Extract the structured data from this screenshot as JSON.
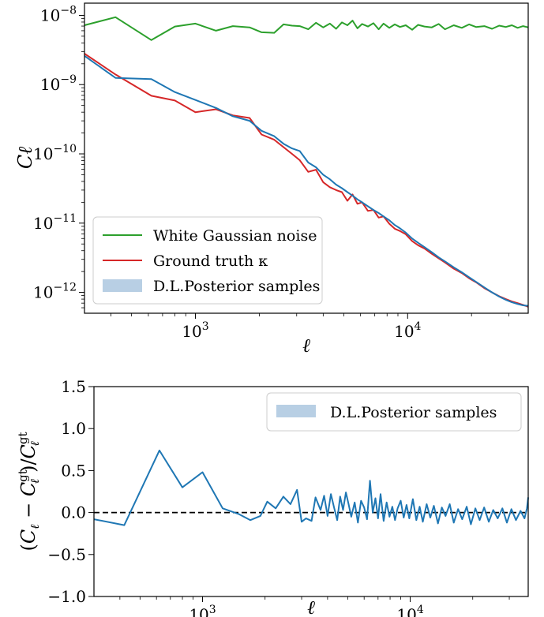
{
  "chart_data": [
    {
      "type": "line",
      "xscale": "log",
      "yscale": "log",
      "xlim": [
        300,
        37000
      ],
      "ylim": [
        5e-13,
        1.5e-08
      ],
      "xlabel": "ℓ",
      "ylabel": "Cℓ",
      "xticks": [
        {
          "value": 1000,
          "mant": "10",
          "exp": "3"
        },
        {
          "value": 10000,
          "mant": "10",
          "exp": "4"
        }
      ],
      "yticks": [
        {
          "value": 1e-12,
          "mant": "10",
          "exp": "−12"
        },
        {
          "value": 1e-11,
          "mant": "10",
          "exp": "−11"
        },
        {
          "value": 1e-10,
          "mant": "10",
          "exp": "−10"
        },
        {
          "value": 1e-09,
          "mant": "10",
          "exp": "−9"
        },
        {
          "value": 1e-08,
          "mant": "10",
          "exp": "−8"
        }
      ],
      "legend_position": "lower-left",
      "series": [
        {
          "name": "White Gaussian noise",
          "color": "#2ca02c",
          "x": [
            300,
            420,
            620,
            800,
            1000,
            1250,
            1500,
            1800,
            2050,
            2350,
            2600,
            2850,
            3100,
            3400,
            3700,
            4000,
            4300,
            4600,
            4900,
            5200,
            5500,
            5800,
            6100,
            6500,
            6900,
            7300,
            7700,
            8200,
            8700,
            9200,
            9800,
            10500,
            11200,
            12000,
            13000,
            14000,
            15000,
            16500,
            18000,
            19500,
            21000,
            23000,
            25000,
            27000,
            29000,
            31000,
            33000,
            35000,
            37000
          ],
          "y": [
            7.2e-09,
            9.4e-09,
            4.4e-09,
            6.9e-09,
            7.6e-09,
            6e-09,
            7e-09,
            6.7e-09,
            5.7e-09,
            5.6e-09,
            7.4e-09,
            7.1e-09,
            7e-09,
            6.3e-09,
            7.8e-09,
            6.7e-09,
            7.6e-09,
            6.4e-09,
            7.9e-09,
            7.2e-09,
            8.4e-09,
            6.5e-09,
            7.5e-09,
            6.9e-09,
            7.7e-09,
            6.3e-09,
            7.6e-09,
            6.6e-09,
            7.4e-09,
            6.8e-09,
            7.2e-09,
            6.2e-09,
            7.3e-09,
            6.9e-09,
            6.7e-09,
            7.5e-09,
            6.3e-09,
            7.2e-09,
            6.6e-09,
            7.4e-09,
            6.8e-09,
            7e-09,
            6.4e-09,
            7.1e-09,
            6.8e-09,
            7.2e-09,
            6.6e-09,
            7e-09,
            6.7e-09
          ]
        },
        {
          "name": "Ground truth κ",
          "color": "#d62728",
          "x": [
            300,
            420,
            620,
            800,
            1000,
            1250,
            1500,
            1800,
            2050,
            2350,
            2600,
            2850,
            3100,
            3400,
            3700,
            4000,
            4300,
            4600,
            4900,
            5200,
            5500,
            5800,
            6100,
            6500,
            6900,
            7300,
            7700,
            8200,
            8700,
            9200,
            9800,
            10500,
            11200,
            12000,
            13000,
            14000,
            15000,
            16500,
            18000,
            19500,
            21000,
            23000,
            25000,
            27000,
            29000,
            31000,
            33000,
            35000,
            37000
          ],
          "y": [
            2.8e-09,
            1.4e-09,
            6.9e-10,
            5.9e-10,
            4e-10,
            4.4e-10,
            3.6e-10,
            3.3e-10,
            1.9e-10,
            1.6e-10,
            1.25e-10,
            1e-10,
            8.1e-11,
            5.5e-11,
            5.9e-11,
            3.9e-11,
            3.3e-11,
            3e-11,
            2.8e-11,
            2.1e-11,
            2.6e-11,
            1.9e-11,
            2e-11,
            1.5e-11,
            1.55e-11,
            1.2e-11,
            1.25e-11,
            9.8e-12,
            8.3e-12,
            7.7e-12,
            6.9e-12,
            5.5e-12,
            4.8e-12,
            4.3e-12,
            3.6e-12,
            3.1e-12,
            2.7e-12,
            2.2e-12,
            1.9e-12,
            1.6e-12,
            1.4e-12,
            1.15e-12,
            1e-12,
            8.8e-13,
            8e-13,
            7.4e-13,
            7e-13,
            6.6e-13,
            6.2e-13
          ]
        },
        {
          "name": "D.L.Posterior samples",
          "color": "#1f77b4",
          "x": [
            300,
            420,
            620,
            800,
            1000,
            1250,
            1500,
            1800,
            2050,
            2350,
            2600,
            2850,
            3100,
            3400,
            3700,
            4000,
            4300,
            4600,
            4900,
            5200,
            5500,
            5800,
            6100,
            6500,
            6900,
            7300,
            7700,
            8200,
            8700,
            9200,
            9800,
            10500,
            11200,
            12000,
            13000,
            14000,
            15000,
            16500,
            18000,
            19500,
            21000,
            23000,
            25000,
            27000,
            29000,
            31000,
            33000,
            35000,
            37000
          ],
          "y": [
            2.6e-09,
            1.25e-09,
            1.2e-09,
            7.8e-10,
            6e-10,
            4.6e-10,
            3.5e-10,
            3e-10,
            2.15e-10,
            1.8e-10,
            1.4e-10,
            1.2e-10,
            1.1e-10,
            7.5e-11,
            6.4e-11,
            5e-11,
            4.3e-11,
            3.6e-11,
            3.2e-11,
            2.8e-11,
            2.5e-11,
            2.2e-11,
            2e-11,
            1.75e-11,
            1.55e-11,
            1.4e-11,
            1.25e-11,
            1.1e-11,
            9.4e-12,
            8.4e-12,
            7.3e-12,
            6e-12,
            5.2e-12,
            4.5e-12,
            3.8e-12,
            3.2e-12,
            2.8e-12,
            2.3e-12,
            1.95e-12,
            1.65e-12,
            1.42e-12,
            1.18e-12,
            1e-12,
            8.7e-13,
            7.8e-13,
            7.2e-13,
            6.8e-13,
            6.5e-13,
            6.4e-13
          ]
        }
      ],
      "legend_band_color": "#b8cfe4"
    },
    {
      "type": "line",
      "xscale": "log",
      "yscale": "linear",
      "xlim": [
        300,
        37000
      ],
      "ylim": [
        -1.0,
        1.5
      ],
      "xlabel": "ℓ",
      "ylabel": "(Cℓ − Cℓgt)/Cℓgt",
      "ylabel_parts": {
        "open": "(",
        "c1": "C",
        "sub1": "ℓ",
        "minus": " − ",
        "c2": "C",
        "sup2": "gt",
        "sub2": "ℓ",
        "close": ")/",
        "c3": "C",
        "sup3": "gt",
        "sub3": "ℓ"
      },
      "xticks": [
        {
          "value": 1000,
          "mant": "10",
          "exp": "3"
        },
        {
          "value": 10000,
          "mant": "10",
          "exp": "4"
        }
      ],
      "yticks": [
        {
          "value": -1.0,
          "label": "−1.0"
        },
        {
          "value": -0.5,
          "label": "−0.5"
        },
        {
          "value": 0.0,
          "label": "0.0"
        },
        {
          "value": 0.5,
          "label": "0.5"
        },
        {
          "value": 1.0,
          "label": "1.0"
        },
        {
          "value": 1.5,
          "label": "1.5"
        }
      ],
      "reference_line": 0.0,
      "legend_position": "top-right",
      "series": [
        {
          "name": "D.L.Posterior samples",
          "color": "#1f77b4",
          "x": [
            300,
            420,
            620,
            800,
            1000,
            1250,
            1500,
            1700,
            1900,
            2050,
            2250,
            2450,
            2650,
            2850,
            3000,
            3150,
            3350,
            3500,
            3700,
            3850,
            4000,
            4150,
            4300,
            4450,
            4600,
            4750,
            4900,
            5050,
            5200,
            5400,
            5600,
            5800,
            6000,
            6200,
            6400,
            6600,
            6800,
            7000,
            7200,
            7450,
            7700,
            7950,
            8200,
            8450,
            8700,
            9000,
            9300,
            9600,
            9900,
            10300,
            10700,
            11100,
            11500,
            12000,
            12500,
            13000,
            13600,
            14200,
            14800,
            15500,
            16200,
            17000,
            17800,
            18700,
            19600,
            20600,
            21600,
            22700,
            23900,
            25100,
            26400,
            27800,
            29200,
            30700,
            32300,
            34000,
            35500,
            36500,
            37000
          ],
          "y": [
            -0.08,
            -0.15,
            0.74,
            0.3,
            0.48,
            0.05,
            -0.02,
            -0.09,
            -0.04,
            0.13,
            0.05,
            0.19,
            0.1,
            0.27,
            -0.11,
            -0.07,
            -0.1,
            0.18,
            0.03,
            0.2,
            -0.04,
            0.22,
            0.06,
            -0.09,
            0.19,
            0.03,
            0.24,
            0.1,
            -0.05,
            0.12,
            -0.12,
            0.14,
            0.06,
            -0.08,
            0.38,
            0.0,
            0.17,
            -0.07,
            0.22,
            -0.1,
            0.12,
            -0.05,
            0.07,
            -0.09,
            0.05,
            0.14,
            -0.06,
            0.09,
            -0.07,
            0.16,
            -0.09,
            0.07,
            -0.11,
            0.1,
            -0.06,
            0.08,
            -0.13,
            0.06,
            -0.04,
            0.1,
            -0.12,
            0.04,
            -0.08,
            0.07,
            -0.14,
            0.05,
            -0.09,
            0.06,
            -0.11,
            0.03,
            -0.07,
            0.05,
            -0.12,
            0.04,
            -0.09,
            0.02,
            -0.07,
            0.05,
            0.18
          ]
        }
      ],
      "legend_band_color": "#b8cfe4"
    }
  ]
}
